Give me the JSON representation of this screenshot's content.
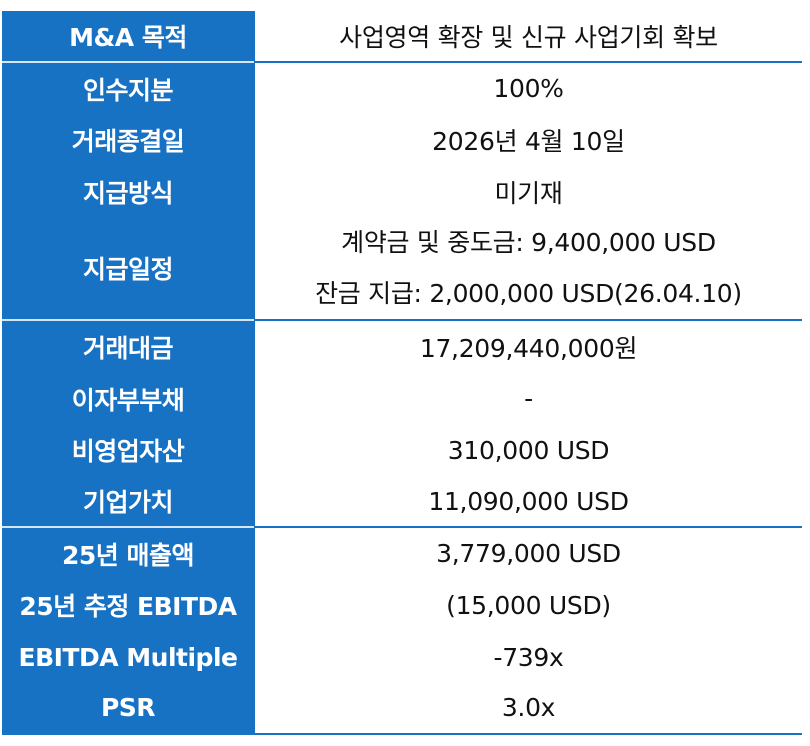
{
  "rows": [
    {
      "label": "M&A 목적",
      "value": "사업영역 확장 및 신규 사업기회 확보"
    },
    {
      "label": "인수지분",
      "value": "100%"
    },
    {
      "label": "거래종결일",
      "value": "2026년 4월 10일"
    },
    {
      "label": "지급방식",
      "value": "미기재"
    },
    {
      "label": "지급일정",
      "values": [
        "계약금 및 중도금: 9,400,000 USD",
        "잔금 지급: 2,000,000 USD(26.04.10)"
      ]
    },
    {
      "label": "거래대금",
      "value": "17,209,440,000원"
    },
    {
      "label": "이자부부채",
      "value": "-"
    },
    {
      "label": "비영업자산",
      "value": "310,000 USD"
    },
    {
      "label": "기업가치",
      "value": "11,090,000 USD"
    },
    {
      "label": "25년 매출액",
      "value": "3,779,000 USD"
    },
    {
      "label": "25년 추정 EBITDA",
      "value": "(15,000 USD)"
    },
    {
      "label": "EBITDA Multiple",
      "value": "-739x"
    },
    {
      "label": "PSR",
      "value": "3.0x"
    }
  ],
  "colors": {
    "header_bg": "#1872c4",
    "header_text": "#ffffff",
    "border": "#1872c4"
  }
}
